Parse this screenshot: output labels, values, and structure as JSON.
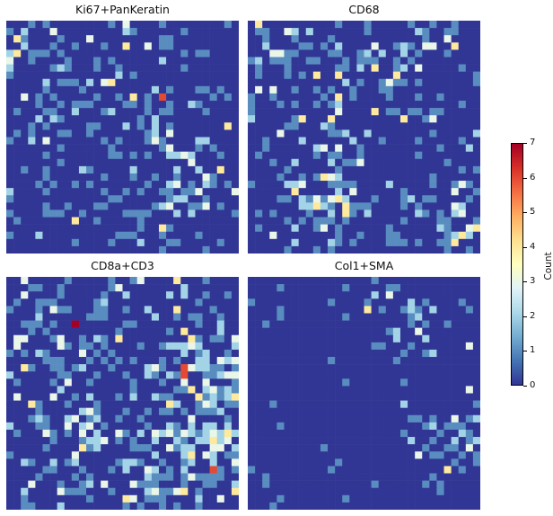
{
  "chart_data": {
    "type": "heatmap",
    "colormap": "RdYlBu_r",
    "colorbar": {
      "label": "Count",
      "min": 0,
      "max": 7,
      "ticks": [
        "0",
        "1",
        "2",
        "3",
        "4",
        "5",
        "6",
        "7"
      ]
    },
    "panels": [
      {
        "title": "Ki67+PanKeratin",
        "grid": [
          32,
          32
        ],
        "max_value": 6
      },
      {
        "title": "CD68",
        "grid": [
          32,
          32
        ],
        "max_value": 4
      },
      {
        "title": "CD8a+CD3",
        "grid": [
          32,
          32
        ],
        "max_value": 7
      },
      {
        "title": "Col1+SMA",
        "grid": [
          32,
          32
        ],
        "max_value": 3
      }
    ]
  }
}
